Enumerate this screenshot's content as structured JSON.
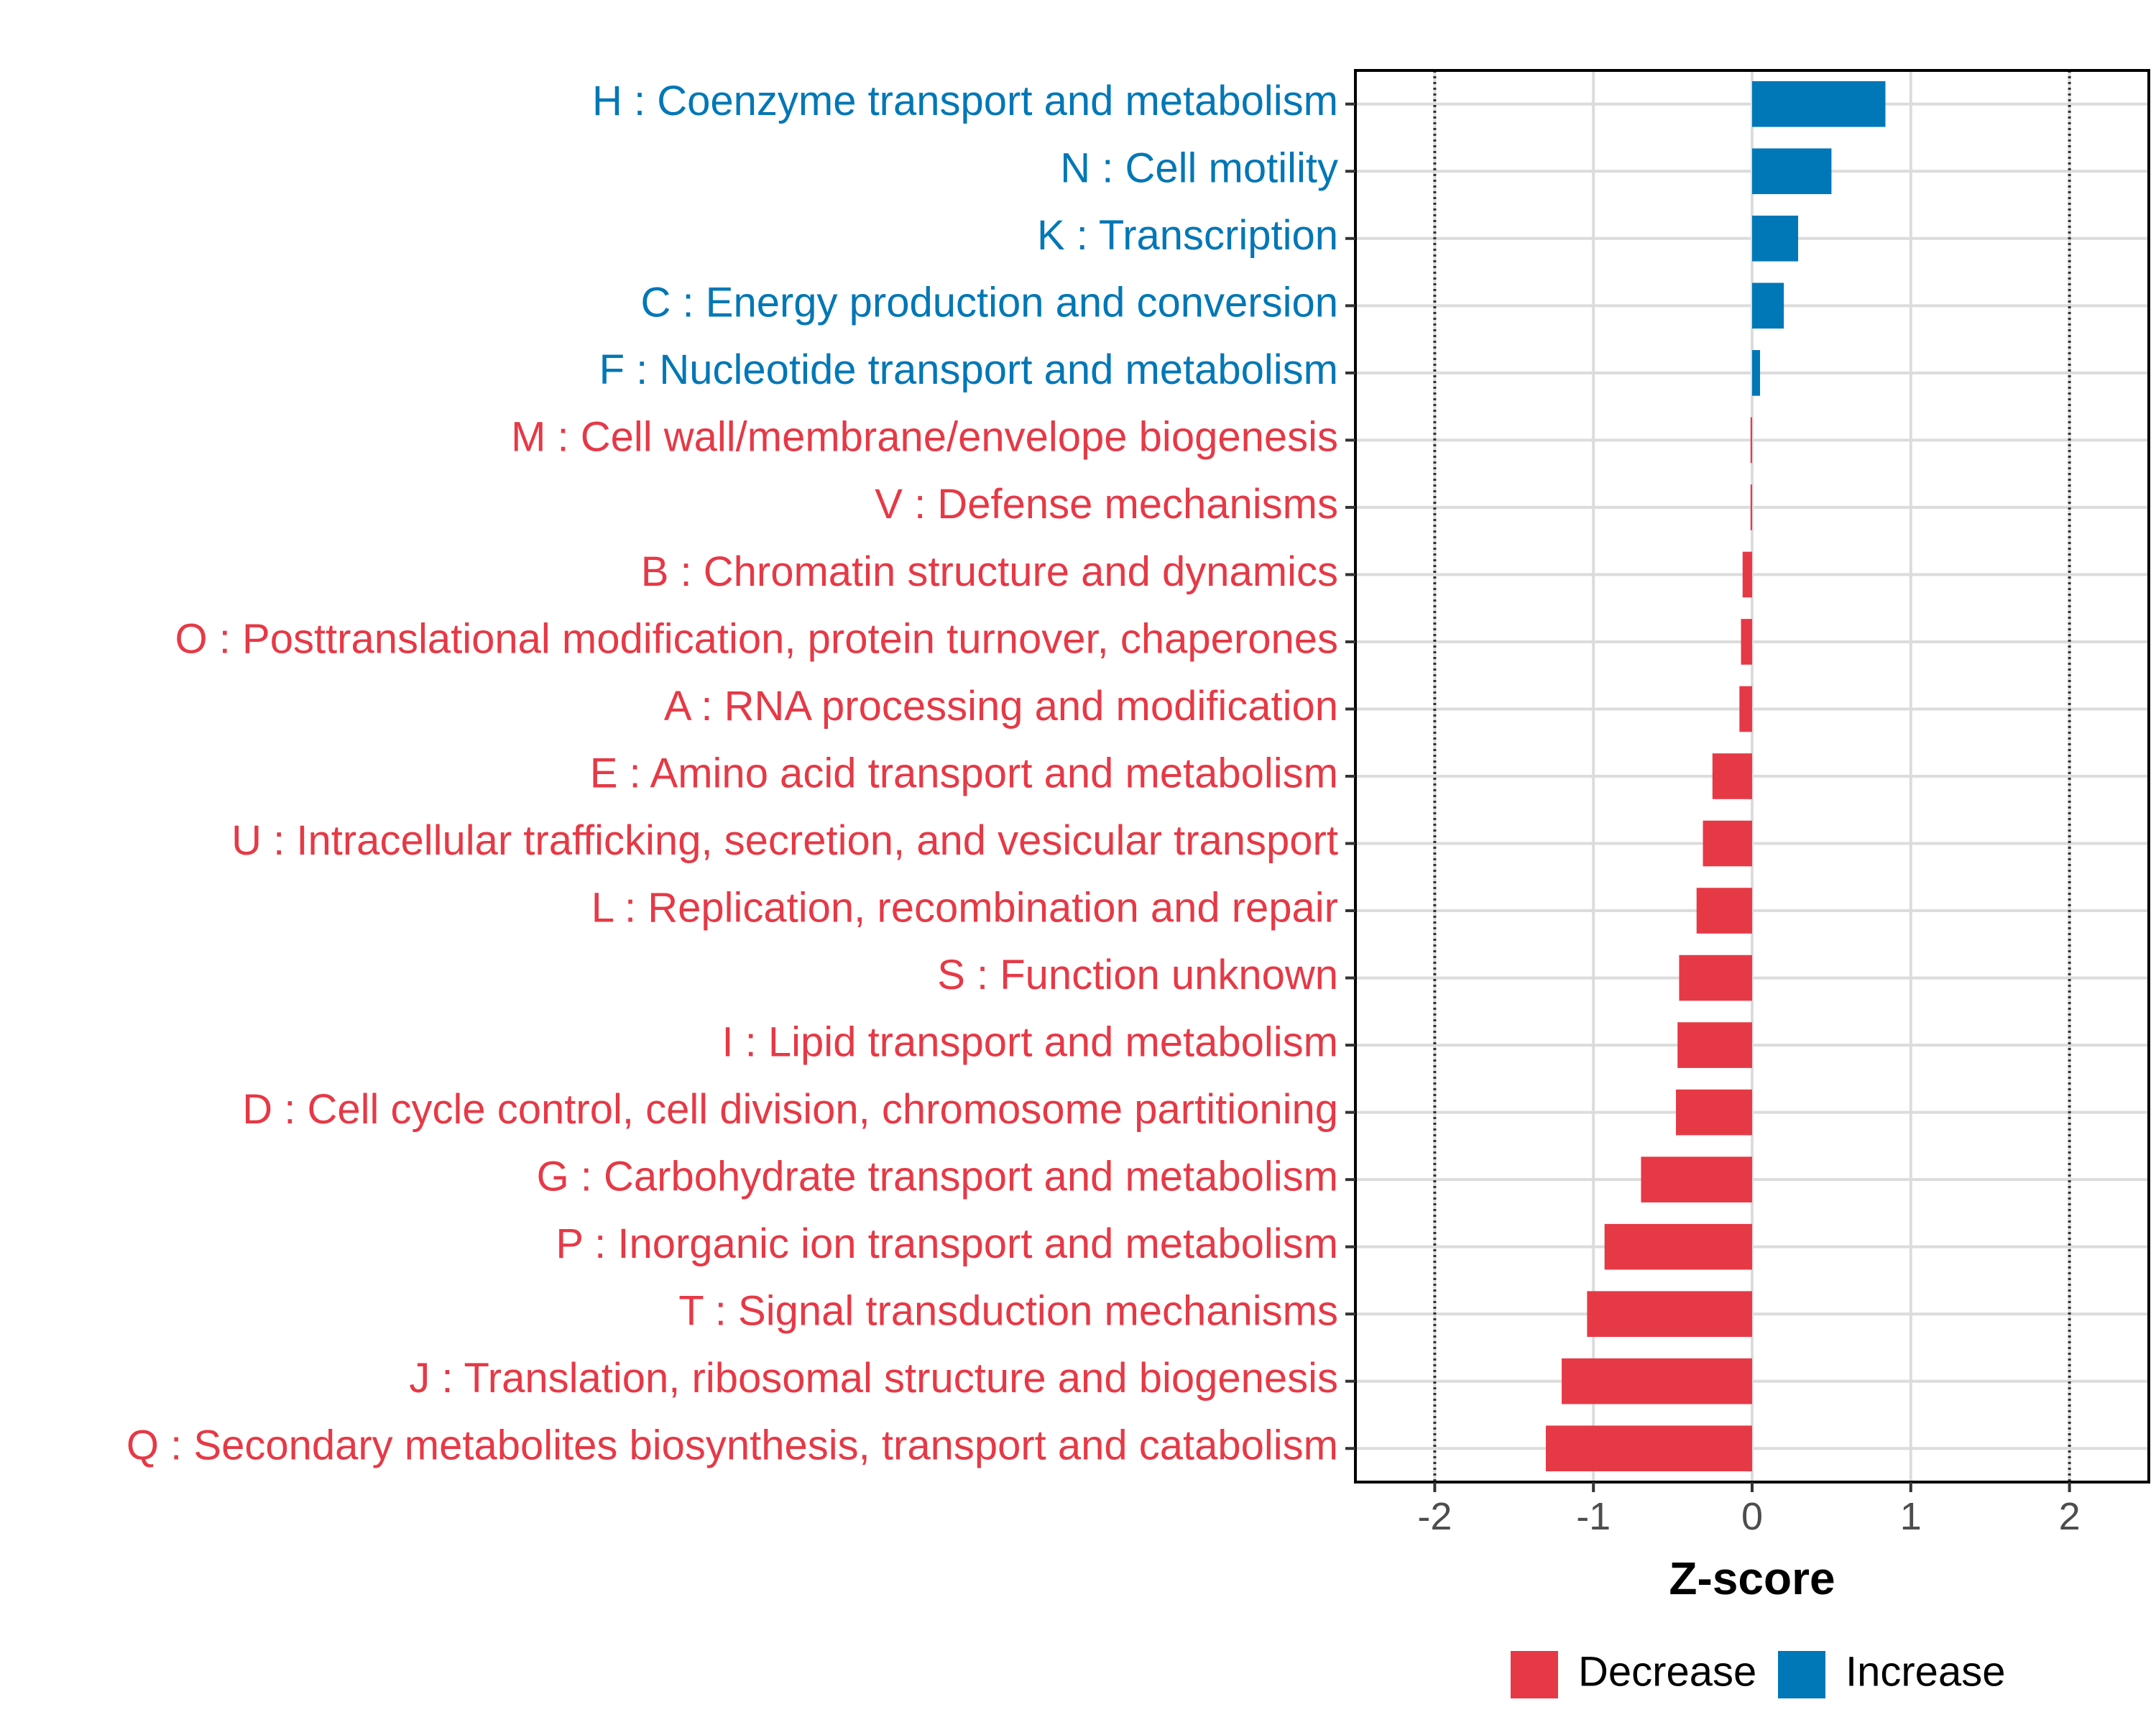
{
  "chart_data": {
    "type": "bar",
    "orientation": "horizontal",
    "xlabel": "Z-score",
    "xlim": [
      -2.5,
      2.5
    ],
    "xticks": [
      -2,
      -1,
      0,
      1,
      2
    ],
    "xtick_labels": [
      "-2",
      "-1",
      "0",
      "1",
      "2"
    ],
    "reference_lines": [
      -2,
      2
    ],
    "grid": true,
    "legend_position": "bottom-right",
    "colors": {
      "Decrease": "#E63946",
      "Increase": "#0077B6"
    },
    "legend": [
      {
        "label": "Decrease",
        "color": "#E63946"
      },
      {
        "label": "Increase",
        "color": "#0077B6"
      }
    ],
    "categories": [
      "H : Coenzyme transport and metabolism",
      "N : Cell motility",
      "K : Transcription",
      "C : Energy production and conversion",
      "F : Nucleotide transport and metabolism",
      "M : Cell wall/membrane/envelope biogenesis",
      "V : Defense mechanisms",
      "B : Chromatin structure and dynamics",
      "O : Posttranslational modification, protein turnover, chaperones",
      "A : RNA processing and modification",
      "E : Amino acid transport and metabolism",
      "U : Intracellular trafficking, secretion, and vesicular transport",
      "L : Replication, recombination and repair",
      "S : Function unknown",
      "I : Lipid transport and metabolism",
      "D : Cell cycle control, cell division, chromosome partitioning",
      "G : Carbohydrate transport and metabolism",
      "P : Inorganic ion transport and metabolism",
      "T : Signal transduction mechanisms",
      "J : Translation, ribosomal structure and biogenesis",
      "Q : Secondary metabolites biosynthesis, transport and catabolism"
    ],
    "values": [
      0.84,
      0.5,
      0.29,
      0.2,
      0.05,
      -0.01,
      -0.01,
      -0.06,
      -0.07,
      -0.08,
      -0.25,
      -0.31,
      -0.35,
      -0.46,
      -0.47,
      -0.48,
      -0.7,
      -0.93,
      -1.04,
      -1.2,
      -1.3
    ],
    "groups": [
      "Increase",
      "Increase",
      "Increase",
      "Increase",
      "Increase",
      "Decrease",
      "Decrease",
      "Decrease",
      "Decrease",
      "Decrease",
      "Decrease",
      "Decrease",
      "Decrease",
      "Decrease",
      "Decrease",
      "Decrease",
      "Decrease",
      "Decrease",
      "Decrease",
      "Decrease",
      "Decrease"
    ]
  }
}
